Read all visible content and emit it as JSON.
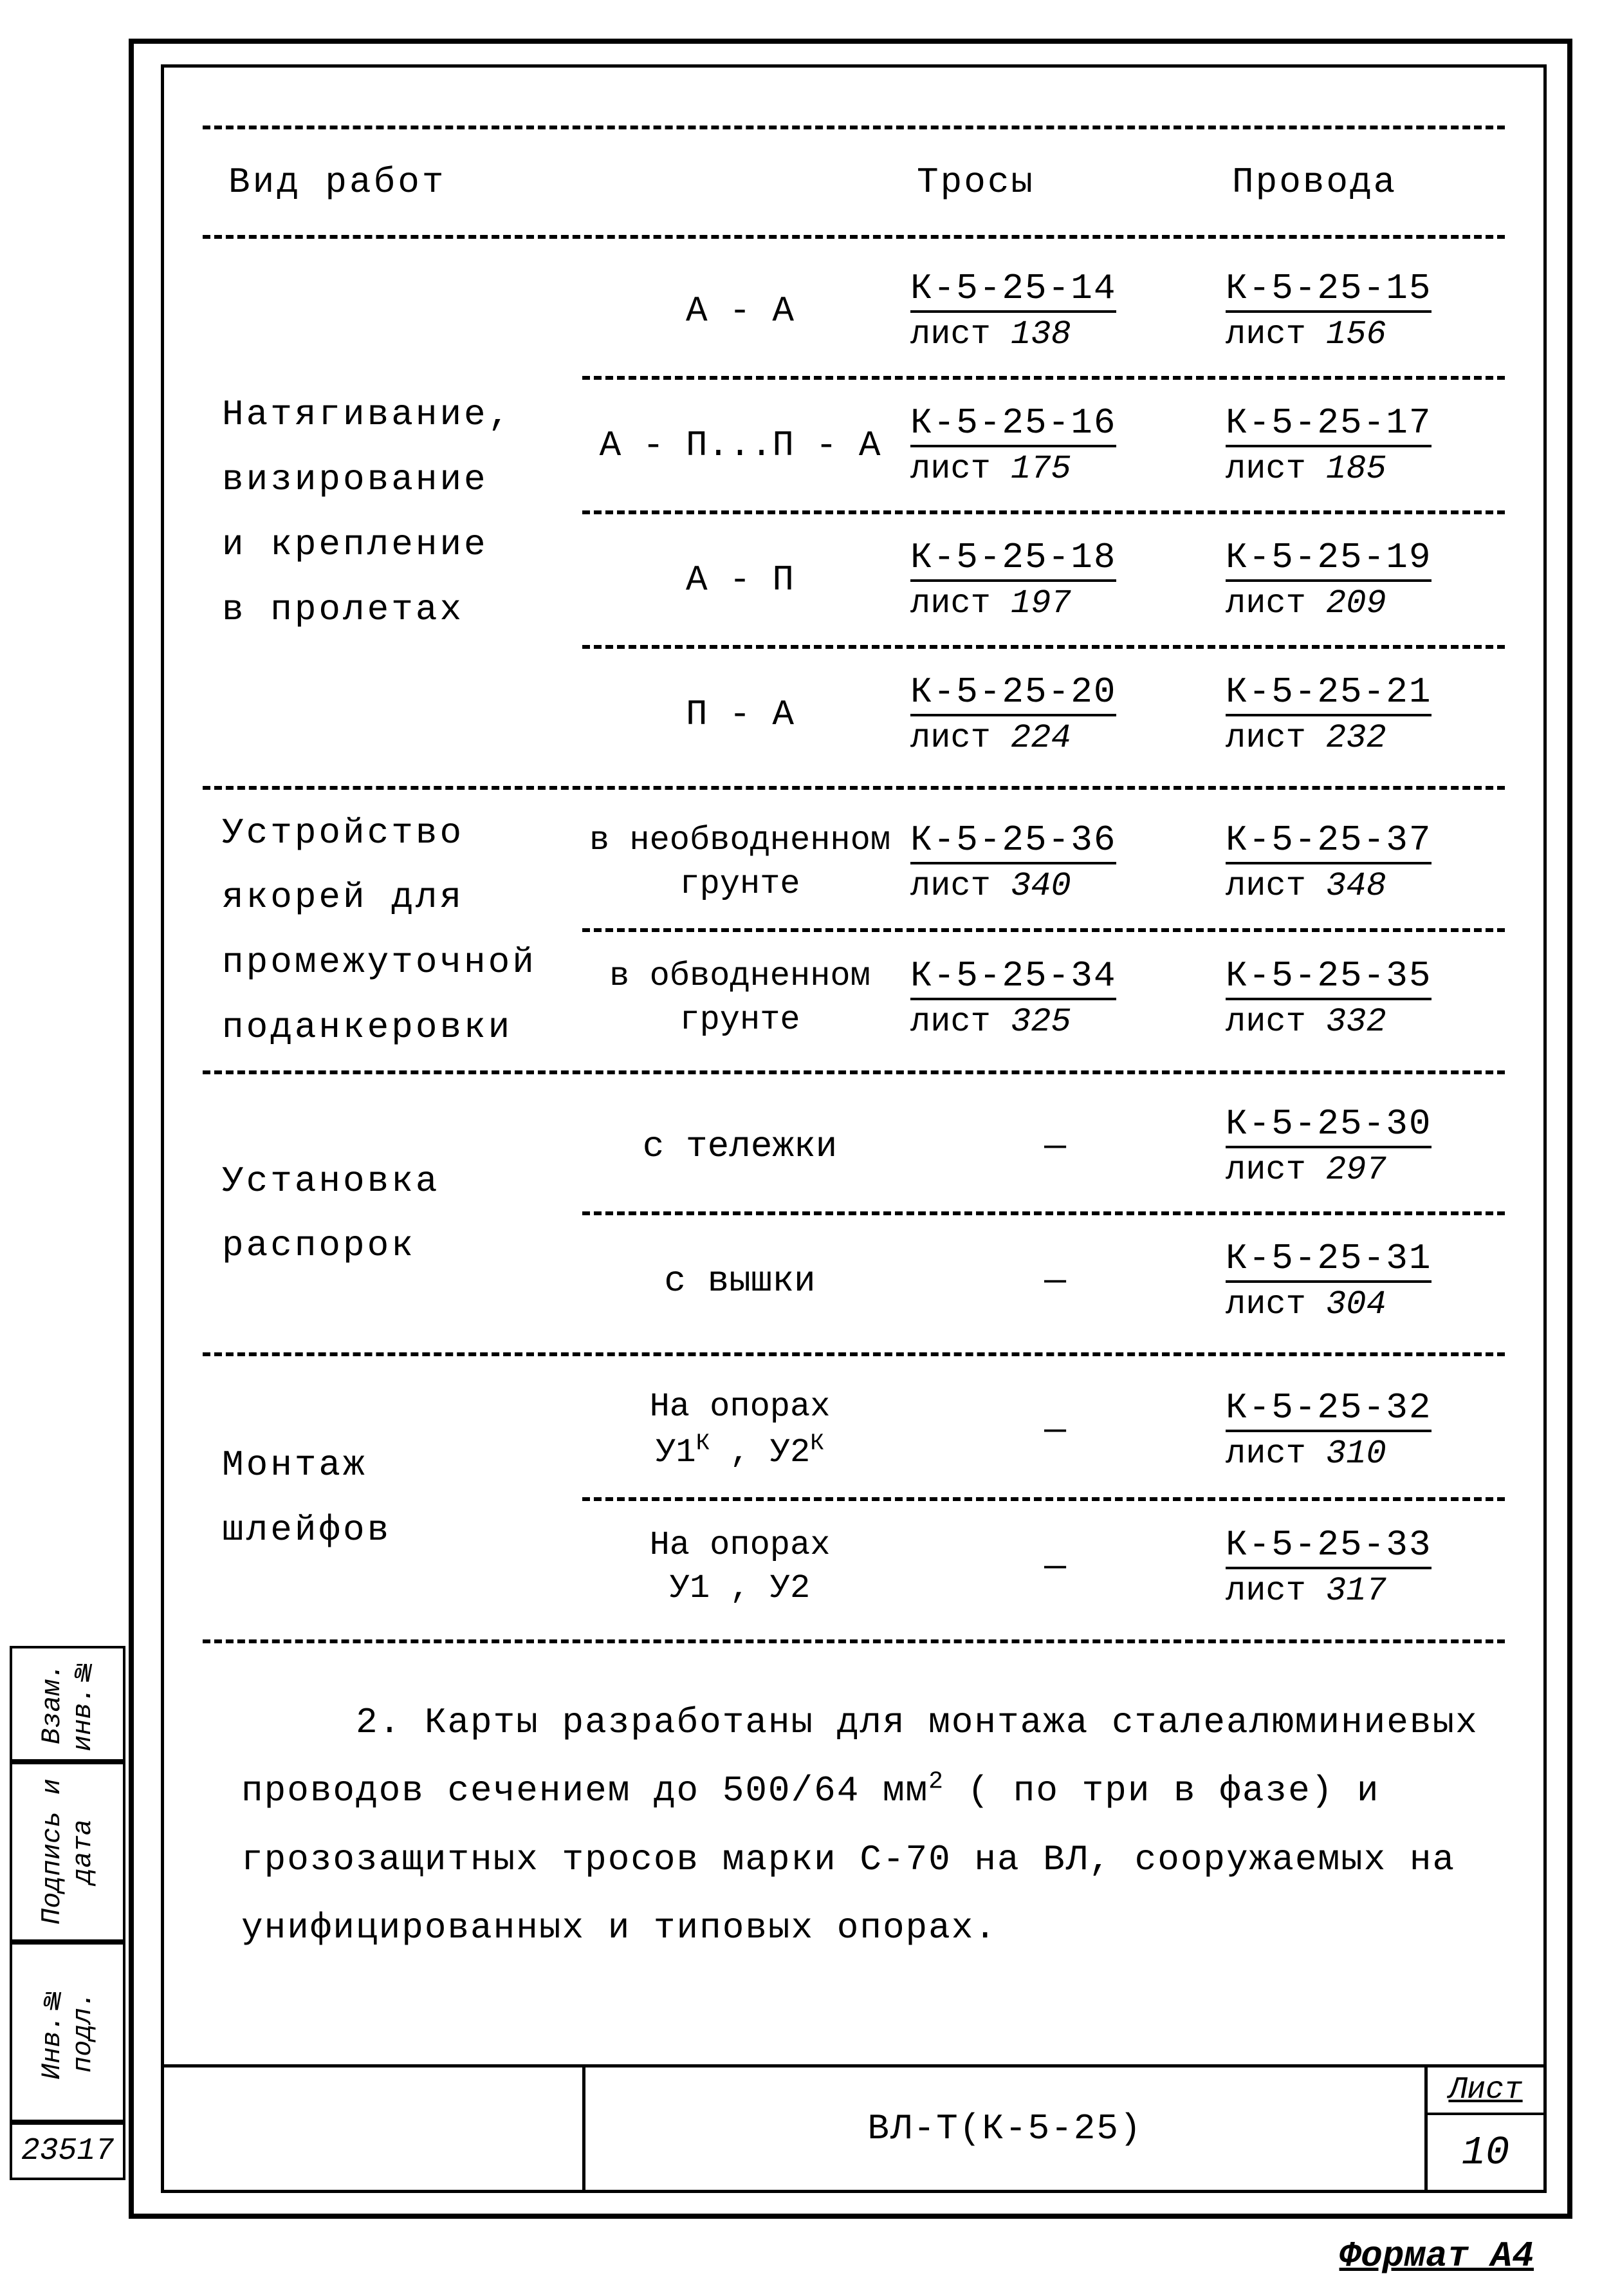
{
  "headers": {
    "work_type": "Вид работ",
    "col_trosy": "Тросы",
    "col_provoda": "Провода"
  },
  "sections": [
    {
      "label_lines": [
        "Натягивание,",
        "визирование",
        "и крепление",
        "в пролетах"
      ],
      "rows": [
        {
          "c2": "А - А",
          "trosy_code": "К-5-25-14",
          "trosy_sheet": "138",
          "prov_code": "К-5-25-15",
          "prov_sheet": "156"
        },
        {
          "c2": "А - П...П - А",
          "trosy_code": "К-5-25-16",
          "trosy_sheet": "175",
          "prov_code": "К-5-25-17",
          "prov_sheet": "185"
        },
        {
          "c2": "А - П",
          "trosy_code": "К-5-25-18",
          "trosy_sheet": "197",
          "prov_code": "К-5-25-19",
          "prov_sheet": "209"
        },
        {
          "c2": "П - А",
          "trosy_code": "К-5-25-20",
          "trosy_sheet": "224",
          "prov_code": "К-5-25-21",
          "prov_sheet": "232"
        }
      ]
    },
    {
      "label_lines": [
        "Устройство",
        "якорей для",
        "промежуточной",
        "поданкеровки"
      ],
      "rows": [
        {
          "c2_l1": "в необводненном",
          "c2_l2": "грунте",
          "trosy_code": "К-5-25-36",
          "trosy_sheet": "340",
          "prov_code": "К-5-25-37",
          "prov_sheet": "348"
        },
        {
          "c2_l1": "в обводненном",
          "c2_l2": "грунте",
          "trosy_code": "К-5-25-34",
          "trosy_sheet": "325",
          "prov_code": "К-5-25-35",
          "prov_sheet": "332"
        }
      ]
    },
    {
      "label_lines": [
        "Установка",
        "распорок"
      ],
      "rows": [
        {
          "c2": "с тележки",
          "trosy_dash": "—",
          "prov_code": "К-5-25-30",
          "prov_sheet": "297"
        },
        {
          "c2": "с вышки",
          "trosy_dash": "—",
          "prov_code": "К-5-25-31",
          "prov_sheet": "304"
        }
      ]
    },
    {
      "label_lines": [
        "Монтаж",
        "шлейфов"
      ],
      "rows": [
        {
          "c2_l1": "На опорах",
          "c2_sup": "У1ᴷ , У2ᴷ",
          "trosy_dash": "—",
          "prov_code": "К-5-25-32",
          "prov_sheet": "310"
        },
        {
          "c2_l1": "На опорах",
          "c2_l2": "У1 , У2",
          "trosy_dash": "—",
          "prov_code": "К-5-25-33",
          "prov_sheet": "317"
        }
      ]
    }
  ],
  "note": {
    "prefix": "2. Карты разработаны для монтажа сталеалюминиевых проводов сечением до 500/64 мм",
    "sup": "2",
    "suffix": " ( по три в фазе) и грозозащитных тросов марки С-70 на ВЛ, сооружаемых на унифицированных и типовых опорах."
  },
  "sheet_word": "лист",
  "title_block": {
    "doc_code": "ВЛ-Т(К-5-25)",
    "sheet_label": "Лист",
    "sheet_num": "10"
  },
  "side_stamps": {
    "s1": "Взам. инв.№",
    "s2": "Подпись и дата",
    "s3": "Инв.№ подл.",
    "num": "23517"
  },
  "format_label": "Формат А4"
}
